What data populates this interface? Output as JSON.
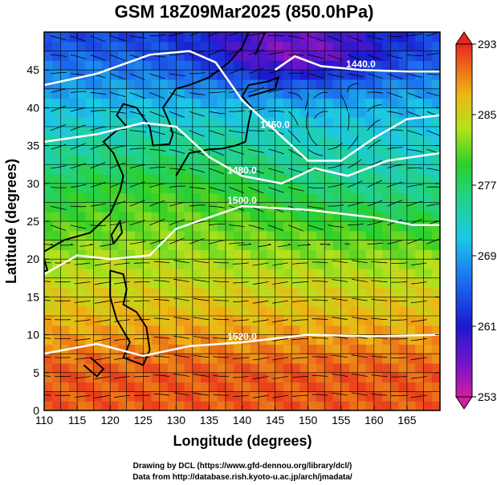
{
  "chart_data": {
    "type": "heatmap",
    "title": "GSM 18Z09Mar2025 (850.0hPa)",
    "xlabel": "Longitude (degrees)",
    "ylabel": "Latitude  (degrees)",
    "xlim": [
      110,
      170
    ],
    "ylim": [
      0,
      50
    ],
    "xticks": [
      "110",
      "115",
      "120",
      "125",
      "130",
      "135",
      "140",
      "145",
      "150",
      "155",
      "160",
      "165"
    ],
    "yticks": [
      "0",
      "5",
      "10",
      "15",
      "20",
      "25",
      "30",
      "35",
      "40",
      "45"
    ],
    "colorbar": {
      "ticks": [
        "293",
        "285",
        "277",
        "269",
        "261",
        "253"
      ],
      "range": [
        253,
        293
      ]
    },
    "contours": [
      {
        "level": "1440.0"
      },
      {
        "level": "1460.0"
      },
      {
        "level": "1480.0"
      },
      {
        "level": "1500.0"
      },
      {
        "level": "1520.0"
      }
    ],
    "grid": true,
    "overlay": "streamlines"
  },
  "footer": {
    "line1": "Drawing by DCL (https://www.gfd-dennou.org/library/dcl/)",
    "line2": "Data from http://database.rish.kyoto-u.ac.jp/arch/jmadata/"
  }
}
